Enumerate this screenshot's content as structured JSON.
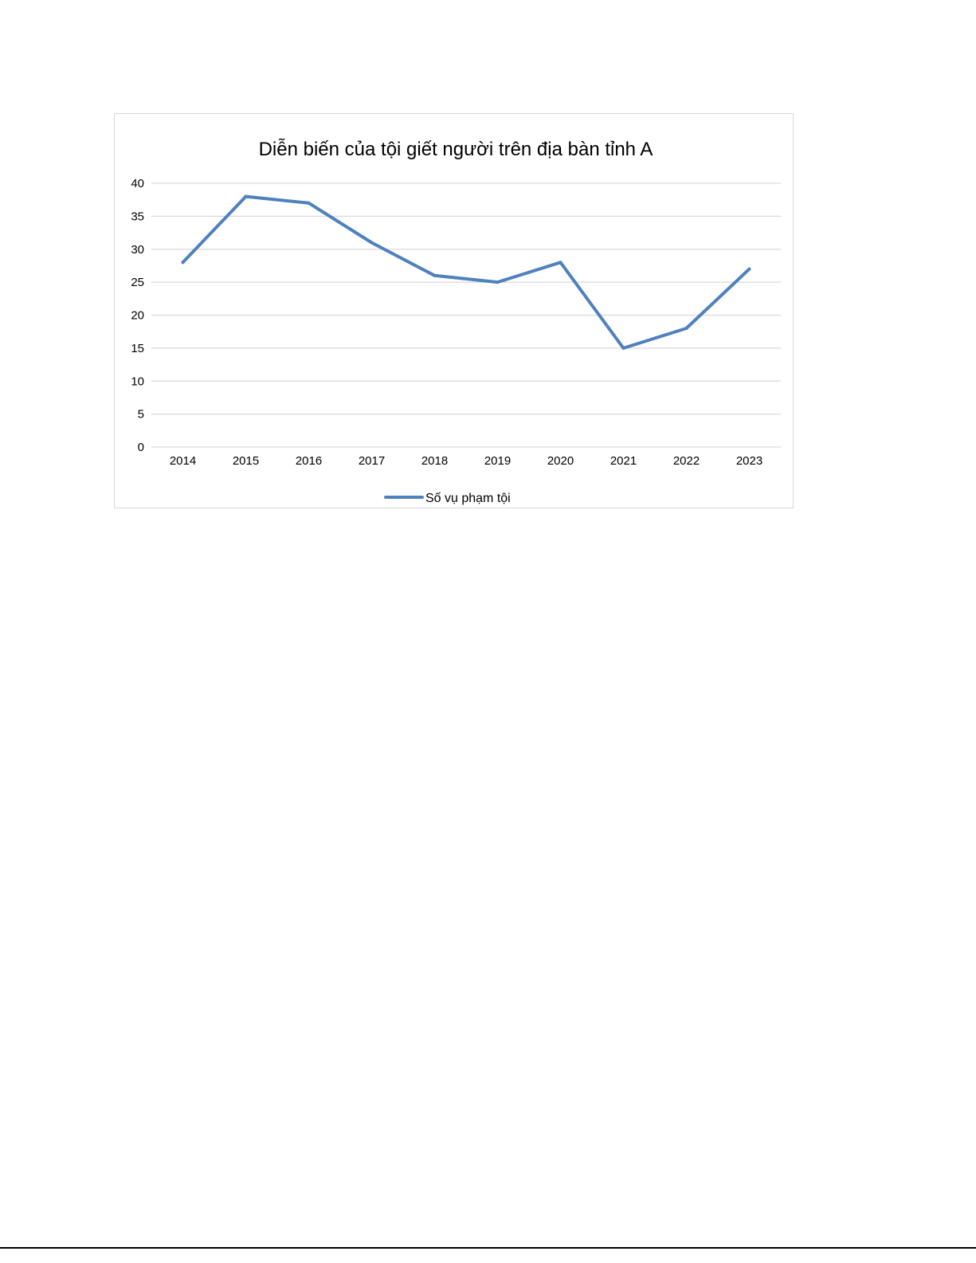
{
  "chart_data": {
    "type": "line",
    "title": "Diễn biến của tội giết người trên địa bàn tỉnh A",
    "xlabel": "",
    "ylabel": "",
    "categories": [
      "2014",
      "2015",
      "2016",
      "2017",
      "2018",
      "2019",
      "2020",
      "2021",
      "2022",
      "2023"
    ],
    "series": [
      {
        "name": "Số vụ phạm tội",
        "values": [
          28,
          38,
          37,
          31,
          26,
          25,
          28,
          15,
          18,
          27
        ],
        "color": "#4f81bd"
      }
    ],
    "ylim": [
      0,
      40
    ],
    "yticks": [
      0,
      5,
      10,
      15,
      20,
      25,
      30,
      35,
      40
    ],
    "grid": true,
    "legend_position": "bottom",
    "colors": {
      "gridline": "#d9d9d9",
      "text": "#000000",
      "frame": "#d9d9d9"
    }
  }
}
